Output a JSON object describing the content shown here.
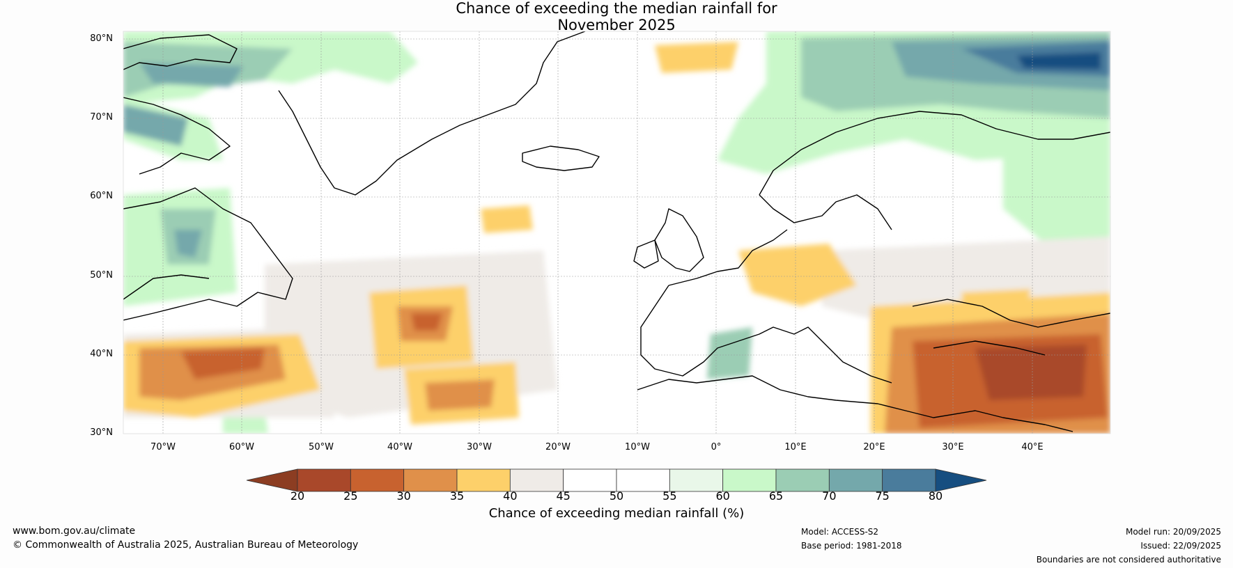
{
  "title_line1": "Chance of exceeding the median rainfall for",
  "title_line2": "November 2025",
  "map": {
    "latitude_labels": [
      "80°N",
      "70°N",
      "60°N",
      "50°N",
      "40°N",
      "30°N"
    ],
    "longitude_labels": [
      "70°W",
      "60°W",
      "50°W",
      "40°W",
      "30°W",
      "20°W",
      "10°W",
      "0°",
      "10°E",
      "20°E",
      "30°E",
      "40°E"
    ]
  },
  "colorbar": {
    "ticks": [
      "20",
      "25",
      "30",
      "35",
      "40",
      "45",
      "50",
      "55",
      "60",
      "65",
      "70",
      "75",
      "80"
    ],
    "colors": [
      "#a9482a",
      "#c8622f",
      "#e0904a",
      "#fdd06a",
      "#efebe7",
      "#ffffff",
      "#ffffff",
      "#e9f7e9",
      "#c9f8c9",
      "#9bcdb4",
      "#74a8ab",
      "#4a7c9c"
    ],
    "low_extend_color": "#8c3d22",
    "high_extend_color": "#164e80",
    "label": "Chance of exceeding median rainfall (%)"
  },
  "footer": {
    "website": "www.bom.gov.au/climate",
    "copyright": "© Commonwealth of Australia 2025, Australian Bureau of Meteorology",
    "model": "Model: ACCESS-S2",
    "base_period": "Base period: 1981-2018",
    "model_run": "Model run: 20/09/2025",
    "issued": "Issued: 22/09/2025",
    "boundaries_note": "Boundaries are not considered authoritative"
  }
}
